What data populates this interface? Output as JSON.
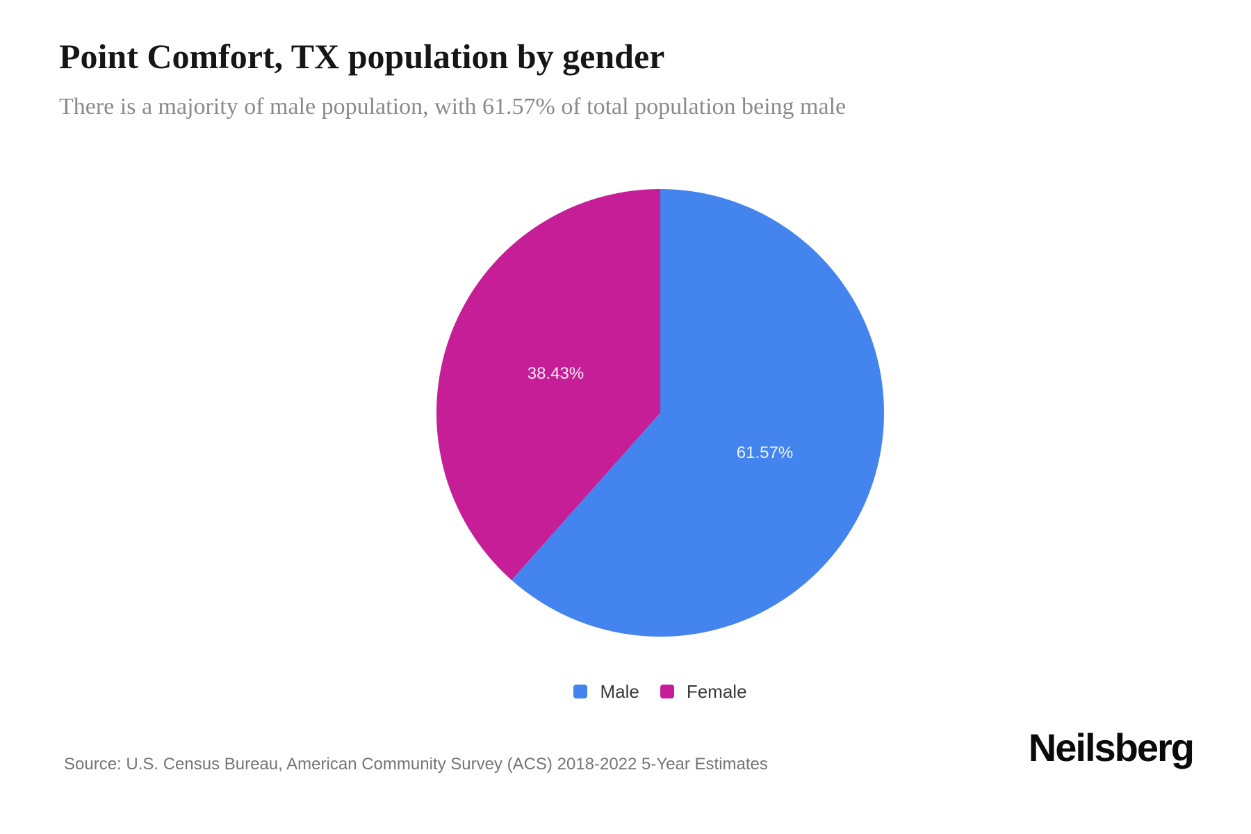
{
  "header": {
    "title": "Point Comfort, TX population by gender",
    "subtitle": "There is a majority of male population, with 61.57% of total population being male"
  },
  "chart_data": {
    "type": "pie",
    "title": "Point Comfort, TX population by gender",
    "start_angle": "top",
    "direction": "clockwise",
    "legend_position": "bottom",
    "label_radius_fraction": 0.5,
    "label_color": "rgba(255,255,255,0.9)",
    "slices": [
      {
        "label": "Male",
        "value": 61.57,
        "display": "61.57%",
        "color": "#4484EE"
      },
      {
        "label": "Female",
        "value": 38.43,
        "display": "38.43%",
        "color": "#C51E97"
      }
    ]
  },
  "footer": {
    "source": "Source: U.S. Census Bureau, American Community Survey (ACS) 2018-2022 5-Year Estimates",
    "brand": "Neilsberg"
  }
}
